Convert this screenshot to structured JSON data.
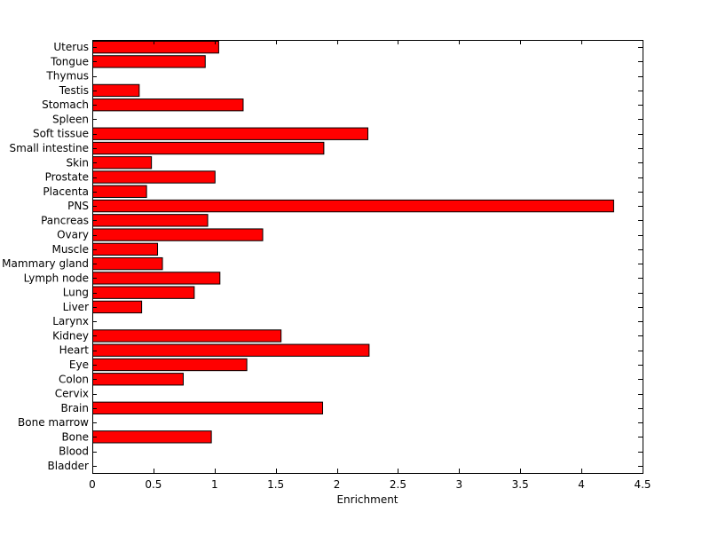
{
  "chart_data": {
    "type": "bar",
    "orientation": "horizontal",
    "title": "",
    "xlabel": "Enrichment",
    "ylabel": "",
    "xlim": [
      0,
      4.5
    ],
    "x_ticks": [
      0,
      0.5,
      1,
      1.5,
      2,
      2.5,
      3,
      3.5,
      4,
      4.5
    ],
    "x_tick_labels": [
      "0",
      "0.5",
      "1",
      "1.5",
      "2",
      "2.5",
      "3",
      "3.5",
      "4",
      "4.5"
    ],
    "grid": false,
    "legend": "none",
    "bar_color": "#ff0000",
    "bar_edge_color": "#000000",
    "categories": [
      "Bladder",
      "Blood",
      "Bone",
      "Bone marrow",
      "Brain",
      "Cervix",
      "Colon",
      "Eye",
      "Heart",
      "Kidney",
      "Larynx",
      "Liver",
      "Lung",
      "Lymph node",
      "Mammary gland",
      "Muscle",
      "Ovary",
      "Pancreas",
      "PNS",
      "Placenta",
      "Prostate",
      "Skin",
      "Small intestine",
      "Soft tissue",
      "Spleen",
      "Stomach",
      "Testis",
      "Thymus",
      "Tongue",
      "Uterus"
    ],
    "values": [
      0,
      0,
      0.97,
      0,
      1.88,
      0,
      0.74,
      1.26,
      2.26,
      1.54,
      0,
      0.4,
      0.83,
      1.04,
      0.57,
      0.53,
      1.39,
      0.94,
      4.26,
      0.44,
      1.0,
      0.48,
      1.89,
      2.25,
      0,
      1.23,
      0.38,
      0,
      0.92,
      1.03
    ]
  }
}
